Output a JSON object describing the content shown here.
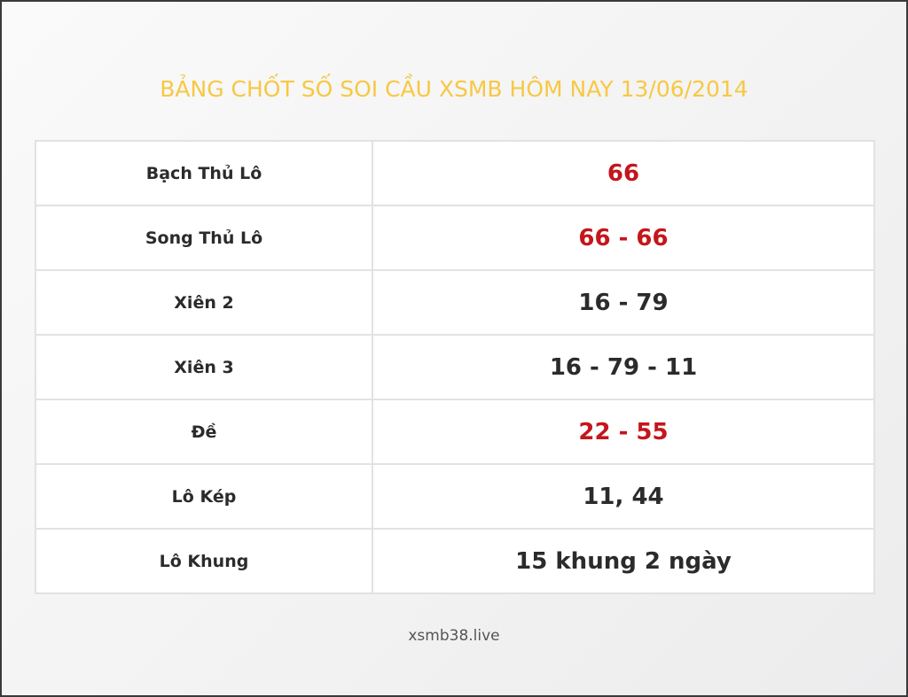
{
  "title": "BẢNG CHỐT SỐ SOI CẦU XSMB HÔM NAY 13/06/2014",
  "rows": [
    {
      "label": "Bạch Thủ Lô",
      "value": "66",
      "highlight": true
    },
    {
      "label": "Song Thủ Lô",
      "value": "66 - 66",
      "highlight": true
    },
    {
      "label": "Xiên 2",
      "value": "16 - 79",
      "highlight": false
    },
    {
      "label": "Xiên 3",
      "value": "16 - 79 - 11",
      "highlight": false
    },
    {
      "label": "Đề",
      "value": "22 - 55",
      "highlight": true
    },
    {
      "label": "Lô Kép",
      "value": "11, 44",
      "highlight": false
    },
    {
      "label": "Lô Khung",
      "value": "15 khung 2 ngày",
      "highlight": false
    }
  ],
  "footer": "xsmb38.live",
  "colors": {
    "title": "#f7c843",
    "highlight": "#c4161c",
    "text": "#2b2b2b"
  }
}
